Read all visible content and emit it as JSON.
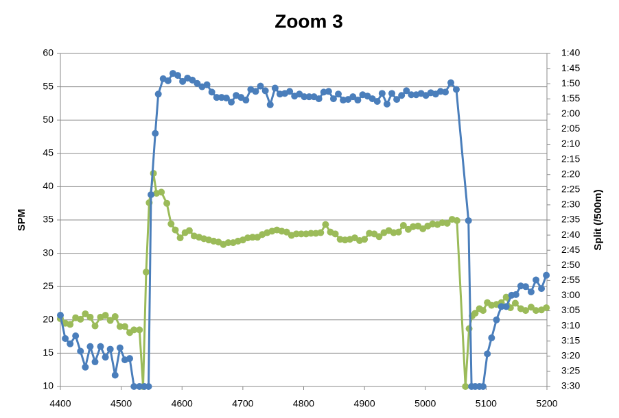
{
  "chart_data": {
    "type": "line",
    "title": "Zoom 3",
    "y_label": "SPM",
    "y2_label": "Split (/500m)",
    "xlim": [
      4400,
      5200
    ],
    "xticks": [
      4400,
      4500,
      4600,
      4700,
      4800,
      4900,
      5000,
      5100,
      5200
    ],
    "ylim": [
      10,
      60
    ],
    "yticks": [
      10,
      15,
      20,
      25,
      30,
      35,
      40,
      45,
      50,
      55,
      60
    ],
    "y2lim": [
      210,
      100
    ],
    "y2ticks": [
      {
        "value": 100,
        "label": "1:40"
      },
      {
        "value": 105,
        "label": "1:45"
      },
      {
        "value": 110,
        "label": "1:50"
      },
      {
        "value": 115,
        "label": "1:55"
      },
      {
        "value": 120,
        "label": "2:00"
      },
      {
        "value": 125,
        "label": "2:05"
      },
      {
        "value": 130,
        "label": "2:10"
      },
      {
        "value": 135,
        "label": "2:15"
      },
      {
        "value": 140,
        "label": "2:20"
      },
      {
        "value": 145,
        "label": "2:25"
      },
      {
        "value": 150,
        "label": "2:30"
      },
      {
        "value": 155,
        "label": "2:35"
      },
      {
        "value": 160,
        "label": "2:40"
      },
      {
        "value": 165,
        "label": "2:45"
      },
      {
        "value": 170,
        "label": "2:50"
      },
      {
        "value": 175,
        "label": "2:55"
      },
      {
        "value": 180,
        "label": "3:00"
      },
      {
        "value": 185,
        "label": "3:05"
      },
      {
        "value": 190,
        "label": "3:10"
      },
      {
        "value": 195,
        "label": "3:15"
      },
      {
        "value": 200,
        "label": "3:20"
      },
      {
        "value": 205,
        "label": "3:25"
      },
      {
        "value": 210,
        "label": "3:30"
      }
    ],
    "grid": true,
    "series": [
      {
        "color": "#4a7ebb",
        "axis": "y",
        "x": [
          4400,
          4408,
          4416,
          4425,
          4433,
          4441,
          4449,
          4457,
          4466,
          4474,
          4482,
          4490,
          4498,
          4506,
          4514,
          4521,
          4530,
          4538,
          4545,
          4549,
          4556,
          4561,
          4569,
          4577,
          4585,
          4593,
          4601,
          4609,
          4617,
          4625,
          4633,
          4641,
          4649,
          4657,
          4665,
          4673,
          4681,
          4689,
          4697,
          4705,
          4713,
          4721,
          4729,
          4737,
          4745,
          4753,
          4761,
          4769,
          4777,
          4785,
          4793,
          4801,
          4809,
          4817,
          4825,
          4833,
          4841,
          4849,
          4857,
          4865,
          4873,
          4881,
          4889,
          4897,
          4905,
          4913,
          4921,
          4929,
          4937,
          4945,
          4953,
          4961,
          4969,
          4977,
          4985,
          4993,
          5001,
          5009,
          5017,
          5025,
          5033,
          5042,
          5051,
          5071,
          5076,
          5082,
          5089,
          5095,
          5102,
          5109,
          5117,
          5125,
          5133,
          5142,
          5149,
          5157,
          5165,
          5174,
          5182,
          5191,
          5199
        ],
        "values": [
          20.7,
          17.2,
          16.4,
          17.6,
          15.3,
          12.9,
          16.0,
          13.7,
          16.0,
          14.4,
          15.6,
          11.7,
          15.8,
          14.0,
          14.2,
          10,
          10,
          10,
          10,
          38.8,
          48.0,
          53.9,
          56.2,
          55.9,
          57.0,
          56.7,
          55.8,
          56.3,
          56.0,
          55.5,
          55.0,
          55.3,
          54.2,
          53.4,
          53.4,
          53.3,
          52.7,
          53.7,
          53.4,
          53.0,
          54.6,
          54.3,
          55.1,
          54.4,
          52.3,
          54.8,
          53.9,
          54.0,
          54.3,
          53.6,
          53.9,
          53.5,
          53.5,
          53.5,
          53.2,
          54.2,
          54.3,
          53.2,
          53.9,
          53.0,
          53.1,
          53.5,
          53.0,
          53.8,
          53.6,
          53.2,
          52.8,
          54.0,
          52.4,
          54.0,
          53.1,
          53.7,
          54.4,
          53.8,
          53.8,
          54.0,
          53.7,
          54.1,
          53.9,
          54.3,
          54.2,
          55.6,
          54.6,
          34.9,
          10,
          10,
          10,
          10,
          14.9,
          17.3,
          20.0,
          22.0,
          22.0,
          23.7,
          23.8,
          25.1,
          25.0,
          24.2,
          26.0,
          24.7,
          26.7
        ]
      },
      {
        "color": "#9bbb59",
        "axis": "y2",
        "x": [
          4400,
          4408,
          4416,
          4425,
          4433,
          4441,
          4449,
          4457,
          4466,
          4474,
          4482,
          4490,
          4498,
          4506,
          4514,
          4521,
          4530,
          4536,
          4541,
          4546,
          4553,
          4558,
          4566,
          4575,
          4582,
          4589,
          4597,
          4605,
          4612,
          4620,
          4628,
          4636,
          4644,
          4652,
          4660,
          4668,
          4676,
          4684,
          4692,
          4700,
          4708,
          4716,
          4724,
          4732,
          4740,
          4748,
          4756,
          4764,
          4772,
          4780,
          4788,
          4796,
          4804,
          4812,
          4820,
          4828,
          4836,
          4844,
          4852,
          4860,
          4868,
          4876,
          4884,
          4892,
          4900,
          4908,
          4916,
          4924,
          4932,
          4940,
          4948,
          4956,
          4964,
          4972,
          4980,
          4988,
          4996,
          5004,
          5012,
          5020,
          5028,
          5036,
          5044,
          5052,
          5066,
          5072,
          5077,
          5082,
          5089,
          5095,
          5102,
          5109,
          5117,
          5125,
          5133,
          5140,
          5148,
          5157,
          5165,
          5174,
          5182,
          5191,
          5199
        ],
        "values": [
          187.6,
          189.1,
          189.5,
          187.3,
          187.8,
          186.0,
          187.1,
          190.0,
          187.1,
          186.5,
          188.2,
          186.9,
          190.2,
          190.2,
          192.2,
          191.3,
          191.3,
          210,
          172.2,
          149.3,
          139.6,
          146.2,
          145.8,
          149.5,
          156.3,
          158.3,
          160.9,
          159.2,
          158.5,
          160.3,
          160.7,
          161.2,
          161.6,
          162.0,
          162.3,
          163.1,
          162.5,
          162.5,
          162.0,
          161.6,
          160.9,
          160.7,
          160.7,
          159.8,
          159.2,
          158.7,
          158.3,
          158.7,
          159.0,
          160.1,
          159.6,
          159.6,
          159.6,
          159.4,
          159.4,
          159.2,
          156.5,
          159.0,
          159.6,
          161.4,
          161.6,
          161.4,
          160.9,
          161.8,
          161.4,
          159.4,
          159.6,
          160.5,
          159.2,
          158.5,
          159.2,
          159.0,
          156.8,
          158.1,
          157.2,
          157.0,
          157.9,
          157.0,
          156.3,
          156.5,
          155.9,
          156.1,
          154.8,
          155.2,
          210,
          190.9,
          186.7,
          185.8,
          184.3,
          184.9,
          182.3,
          183.2,
          182.9,
          182.3,
          180.5,
          184.0,
          182.5,
          184.3,
          184.9,
          183.8,
          184.9,
          184.7,
          184.0
        ]
      }
    ]
  }
}
